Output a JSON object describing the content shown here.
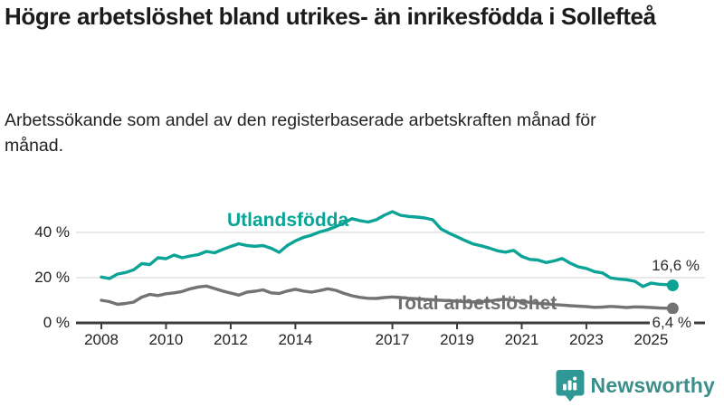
{
  "header": {
    "title": "Högre arbetslöshet bland utrikes- än inrikesfödda i Sollefteå",
    "subtitle": "Arbetssökande som andel av den registerbaserade arbetskraften månad för månad."
  },
  "chart_data": {
    "type": "line",
    "title": "Högre arbetslöshet bland utrikes- än inrikesfödda i Sollefteå",
    "subtitle": "Arbetssökande som andel av den registerbaserade arbetskraften månad för månad.",
    "unit": "%",
    "grid": "horizontal",
    "legend_position": "inline-labels",
    "xlim": [
      2007.3,
      2026.6
    ],
    "ylim": [
      0,
      60
    ],
    "y_ticks": [
      {
        "value": 0,
        "label": "0 %"
      },
      {
        "value": 20,
        "label": "20 %"
      },
      {
        "value": 40,
        "label": "40 %"
      }
    ],
    "x_label_ticks": [
      2008,
      2010,
      2012,
      2014,
      2017,
      2019,
      2021,
      2023,
      2025
    ],
    "x": [
      2008,
      2008.25,
      2008.5,
      2008.75,
      2009,
      2009.25,
      2009.5,
      2009.75,
      2010,
      2010.25,
      2010.5,
      2010.75,
      2011,
      2011.25,
      2011.5,
      2011.75,
      2012,
      2012.25,
      2012.5,
      2012.75,
      2013,
      2013.25,
      2013.5,
      2013.75,
      2014,
      2014.25,
      2014.5,
      2014.75,
      2015,
      2015.25,
      2015.5,
      2015.75,
      2016,
      2016.25,
      2016.5,
      2016.75,
      2017,
      2017.25,
      2017.5,
      2017.75,
      2018,
      2018.25,
      2018.5,
      2018.75,
      2019,
      2019.25,
      2019.5,
      2019.75,
      2020,
      2020.25,
      2020.5,
      2020.75,
      2021,
      2021.25,
      2021.5,
      2021.75,
      2022,
      2022.25,
      2022.5,
      2022.75,
      2023,
      2023.25,
      2023.5,
      2023.75,
      2024,
      2024.25,
      2024.5,
      2024.75,
      2025,
      2025.25,
      2025.5,
      2025.67
    ],
    "series": [
      {
        "name": "Utlandsfödda",
        "color": "#0aa396",
        "end_label": "16,6 %",
        "end_value": 16.6,
        "values": [
          20.3,
          19.6,
          21.6,
          22.3,
          23.5,
          26.2,
          25.8,
          28.8,
          28.4,
          30,
          28.8,
          29.6,
          30.2,
          31.6,
          31,
          32.5,
          33.8,
          35,
          34.2,
          33.9,
          34.2,
          33,
          31.2,
          34.2,
          36.3,
          37.8,
          38.8,
          40.2,
          41.2,
          42.6,
          44.2,
          46.1,
          45.2,
          44.6,
          45.6,
          47.6,
          49.2,
          47.6,
          47.1,
          46.8,
          46.4,
          45.6,
          41.6,
          39.7,
          38.1,
          36.4,
          34.9,
          34.1,
          33.1,
          31.9,
          31.3,
          32.1,
          29.4,
          28.1,
          27.8,
          26.7,
          27.4,
          28.5,
          26.4,
          24.8,
          24.1,
          22.7,
          22.1,
          19.9,
          19.4,
          19.1,
          18.4,
          16.1,
          17.6,
          17.1,
          16.9,
          16.6
        ]
      },
      {
        "name": "Total arbetslöshet",
        "color": "#737373",
        "end_label": "6,4 %",
        "end_value": 6.4,
        "values": [
          10,
          9.4,
          8.2,
          8.6,
          9.2,
          11.4,
          12.6,
          12.1,
          12.9,
          13.3,
          13.9,
          15.1,
          15.9,
          16.3,
          15.2,
          14.1,
          13.2,
          12.3,
          13.6,
          14,
          14.6,
          13.3,
          13,
          14.1,
          14.9,
          14.1,
          13.6,
          14.3,
          15.1,
          14.4,
          13.1,
          12,
          11.3,
          10.9,
          10.8,
          11.2,
          11.5,
          11.2,
          10.9,
          10.7,
          10.4,
          10.2,
          10,
          9.8,
          9.6,
          9.4,
          9.3,
          9.4,
          9.6,
          10.2,
          10.4,
          10,
          9.5,
          9.1,
          8.7,
          8.4,
          8.1,
          7.9,
          7.6,
          7.4,
          7.2,
          6.9,
          7,
          7.3,
          7.1,
          6.8,
          7.1,
          7,
          6.8,
          6.6,
          6.5,
          6.4
        ]
      }
    ]
  },
  "footer": {
    "brand": "Newsworthy"
  }
}
